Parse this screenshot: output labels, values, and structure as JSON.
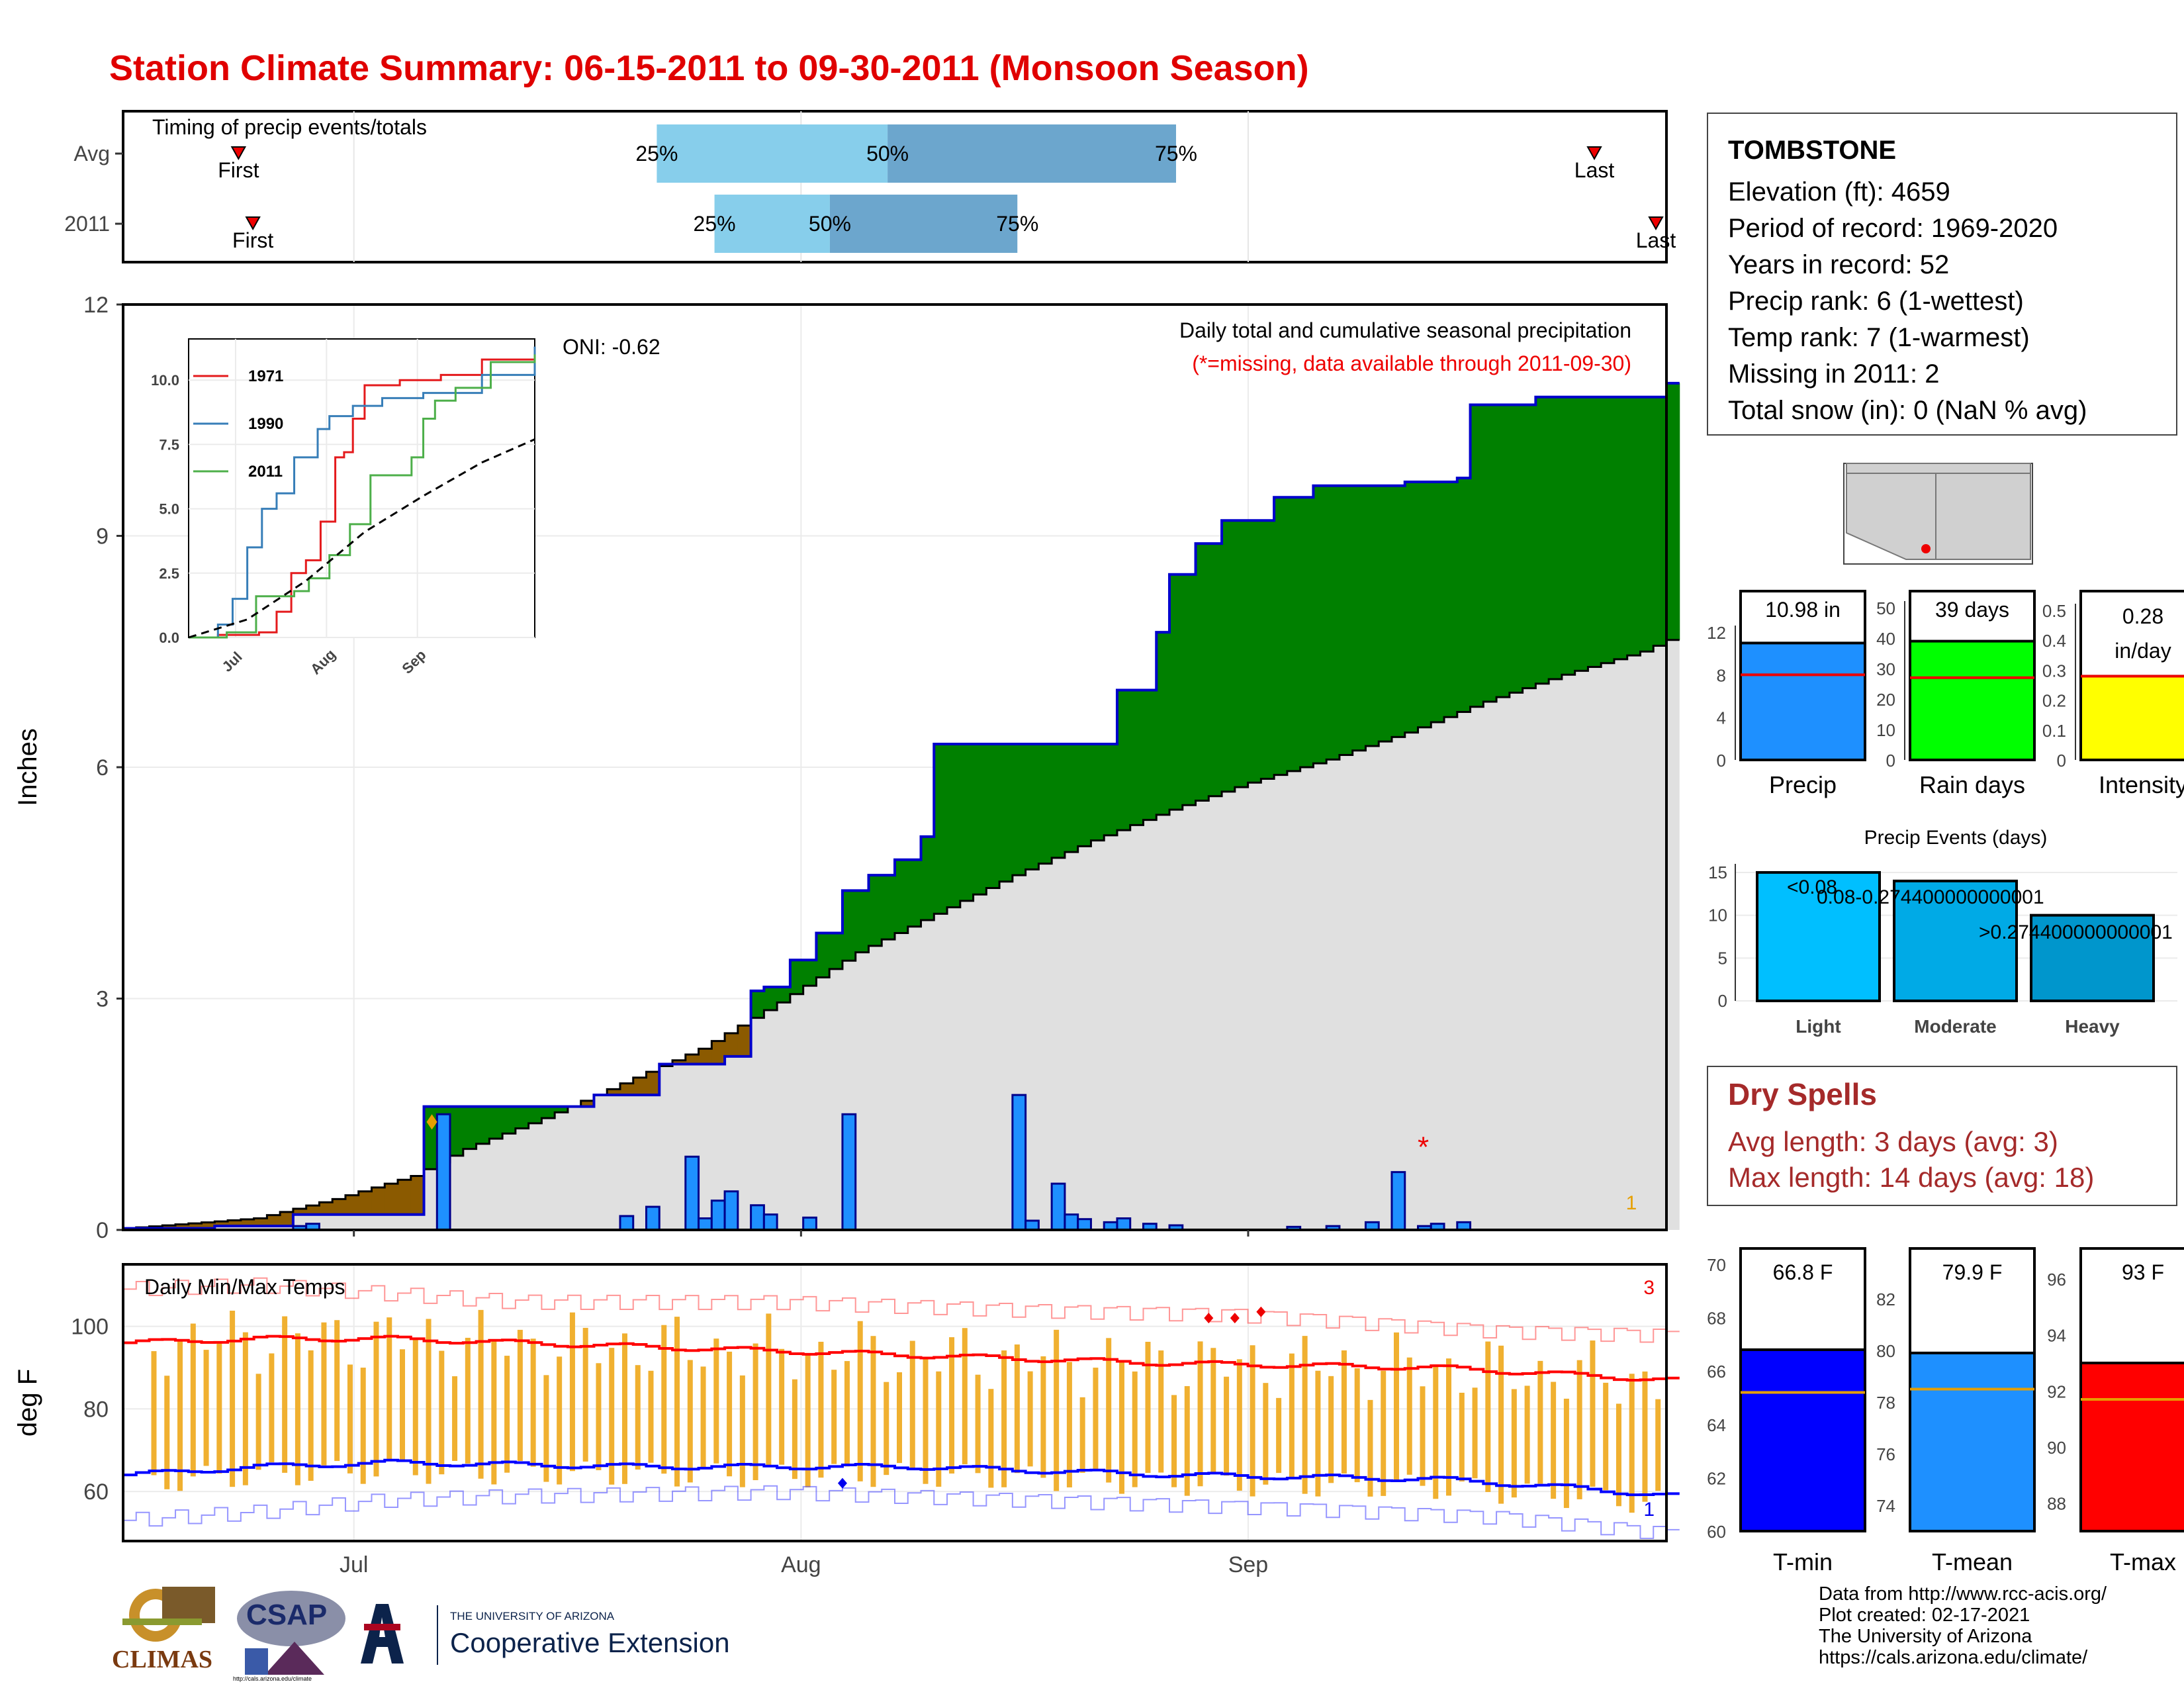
{
  "title": "Station Climate Summary: 06-15-2011 to 09-30-2011 (Monsoon Season)",
  "station": {
    "name": "TOMBSTONE",
    "lines": [
      "Elevation (ft): 4659",
      "Period of record: 1969-2020",
      "Years in record: 52",
      "Precip rank: 6 (1-wettest)",
      "Temp rank: 7 (1-warmest)",
      "Missing in 2011: 2",
      "Total snow (in): 0 (NaN % avg)"
    ]
  },
  "dry_spells": {
    "title": "Dry Spells",
    "avg": "Avg length: 3 days (avg: 3)",
    "max": "Max length: 14 days (avg: 18)"
  },
  "credits": [
    "Data from http://www.rcc-acis.org/",
    "Plot created: 02-17-2021",
    "The University of Arizona",
    "https://cals.arizona.edu/climate/"
  ],
  "logos": {
    "climas": "CLIMAS",
    "csap": "CSAP",
    "csap_url": "http://cals.arizona.edu/climate",
    "ua_line1": "THE UNIVERSITY OF ARIZONA",
    "ua_line2": "Cooperative Extension"
  },
  "colors": {
    "title": "#e00000",
    "precip_bar": "#1e90ff",
    "above_normal": "#008000",
    "below_normal": "#8b5a00",
    "normal_fill": "#e0e0e0",
    "tmax": "#ff0000",
    "tmin": "#0000ff",
    "temp_range": "#f0b030",
    "dry_spell_text": "#a52a2a"
  },
  "chart_data": [
    {
      "id": "timing",
      "type": "bar",
      "title": "Timing of precip events/totals",
      "rows": [
        {
          "label": "Avg",
          "first": "06-23",
          "p25": "07-22",
          "p50": "08-07",
          "p75": "08-27",
          "last": "09-25"
        },
        {
          "label": "2011",
          "first": "06-24",
          "p25": "07-26",
          "p50": "08-03",
          "p75": "08-16",
          "last": "09-30"
        }
      ],
      "marker_first": "First",
      "marker_last": "Last",
      "pct_labels": [
        "25%",
        "50%",
        "75%"
      ]
    },
    {
      "id": "precip",
      "type": "area",
      "title": "Daily total and cumulative seasonal precipitation",
      "subtitle": "(*=missing, data available through 2011-09-30)",
      "oni": "ONI: -0.62",
      "ylabel": "Inches",
      "ylim": [
        0,
        12
      ],
      "yticks": [
        0,
        3,
        6,
        9,
        12
      ],
      "xticks": [
        "Jul",
        "Aug",
        "Sep"
      ],
      "xstart": "06-15",
      "xend": "09-30",
      "missing_count": "1",
      "cumulative_2011": [
        [
          0,
          0.02
        ],
        [
          7,
          0.05
        ],
        [
          13,
          0.2
        ],
        [
          23,
          1.6
        ],
        [
          36,
          1.75
        ],
        [
          41,
          2.15
        ],
        [
          46,
          2.25
        ],
        [
          48,
          3.1
        ],
        [
          49,
          3.15
        ],
        [
          51,
          3.5
        ],
        [
          53,
          3.85
        ],
        [
          55,
          4.4
        ],
        [
          57,
          4.6
        ],
        [
          59,
          4.8
        ],
        [
          61,
          5.1
        ],
        [
          62,
          6.3
        ],
        [
          76,
          7.0
        ],
        [
          79,
          7.75
        ],
        [
          80,
          8.5
        ],
        [
          82,
          8.9
        ],
        [
          84,
          9.2
        ],
        [
          88,
          9.5
        ],
        [
          91,
          9.65
        ],
        [
          98,
          9.7
        ],
        [
          102,
          9.75
        ],
        [
          103,
          10.7
        ],
        [
          108,
          10.8
        ],
        [
          118,
          10.98
        ]
      ],
      "normal": [
        [
          0,
          0.02
        ],
        [
          10,
          0.15
        ],
        [
          16,
          0.4
        ],
        [
          22,
          0.7
        ],
        [
          26,
          1.05
        ],
        [
          32,
          1.45
        ],
        [
          38,
          1.9
        ],
        [
          44,
          2.35
        ],
        [
          50,
          2.95
        ],
        [
          56,
          3.6
        ],
        [
          62,
          4.1
        ],
        [
          68,
          4.6
        ],
        [
          74,
          5.05
        ],
        [
          80,
          5.45
        ],
        [
          86,
          5.8
        ],
        [
          92,
          6.1
        ],
        [
          98,
          6.45
        ],
        [
          104,
          6.85
        ],
        [
          110,
          7.2
        ],
        [
          116,
          7.5
        ],
        [
          118,
          7.65
        ]
      ],
      "daily": [
        [
          13,
          0.05
        ],
        [
          14,
          0.08
        ],
        [
          24,
          1.5
        ],
        [
          38,
          0.18
        ],
        [
          40,
          0.3
        ],
        [
          43,
          0.95
        ],
        [
          44,
          0.15
        ],
        [
          45,
          0.38
        ],
        [
          46,
          0.5
        ],
        [
          48,
          0.32
        ],
        [
          49,
          0.2
        ],
        [
          52,
          0.16
        ],
        [
          55,
          1.5
        ],
        [
          68,
          1.75
        ],
        [
          69,
          0.12
        ],
        [
          71,
          0.6
        ],
        [
          72,
          0.2
        ],
        [
          73,
          0.14
        ],
        [
          75,
          0.1
        ],
        [
          76,
          0.15
        ],
        [
          78,
          0.08
        ],
        [
          80,
          0.06
        ],
        [
          89,
          0.04
        ],
        [
          92,
          0.05
        ],
        [
          95,
          0.1
        ],
        [
          97,
          0.75
        ],
        [
          99,
          0.05
        ],
        [
          100,
          0.08
        ],
        [
          102,
          0.1
        ]
      ],
      "missing_days": [
        99
      ],
      "inset": {
        "type": "line",
        "yticks": [
          0.0,
          2.5,
          5.0,
          7.5,
          10.0
        ],
        "xticks": [
          "Jul",
          "Aug",
          "Sep"
        ],
        "series": [
          {
            "name": "1971",
            "color": "#e41a1c",
            "points": [
              [
                0,
                0
              ],
              [
                10,
                0.1
              ],
              [
                24,
                0.2
              ],
              [
                30,
                1
              ],
              [
                35,
                2.5
              ],
              [
                40,
                3
              ],
              [
                45,
                4.5
              ],
              [
                50,
                7
              ],
              [
                53,
                7.2
              ],
              [
                56,
                8.5
              ],
              [
                60,
                9.8
              ],
              [
                72,
                10
              ],
              [
                86,
                10.2
              ],
              [
                100,
                10.8
              ],
              [
                118,
                11.2
              ]
            ]
          },
          {
            "name": "1990",
            "color": "#377eb8",
            "points": [
              [
                0,
                0
              ],
              [
                10,
                0.5
              ],
              [
                15,
                1.5
              ],
              [
                20,
                3.5
              ],
              [
                25,
                5
              ],
              [
                30,
                5.6
              ],
              [
                36,
                7
              ],
              [
                44,
                8.1
              ],
              [
                48,
                8.6
              ],
              [
                56,
                9
              ],
              [
                66,
                9.3
              ],
              [
                80,
                9.5
              ],
              [
                100,
                10.2
              ],
              [
                118,
                11.3
              ]
            ]
          },
          {
            "name": "2011",
            "color": "#4daf4a",
            "points": [
              [
                0,
                0
              ],
              [
                13,
                0.2
              ],
              [
                23,
                1.6
              ],
              [
                36,
                1.8
              ],
              [
                41,
                2.3
              ],
              [
                48,
                3.2
              ],
              [
                55,
                4.4
              ],
              [
                62,
                6.3
              ],
              [
                76,
                7
              ],
              [
                80,
                8.5
              ],
              [
                84,
                9.2
              ],
              [
                91,
                9.7
              ],
              [
                103,
                10.7
              ],
              [
                118,
                11
              ]
            ]
          },
          {
            "name": "",
            "color": "#000000",
            "dashed": true,
            "points": [
              [
                0,
                0
              ],
              [
                20,
                0.7
              ],
              [
                40,
                2.2
              ],
              [
                60,
                4.1
              ],
              [
                80,
                5.5
              ],
              [
                100,
                6.8
              ],
              [
                118,
                7.7
              ]
            ]
          }
        ]
      }
    },
    {
      "id": "temps",
      "type": "line",
      "title": "Daily Min/Max Temps",
      "ylabel": "deg F",
      "yticks": [
        60,
        80,
        100
      ],
      "ylim": [
        48,
        115
      ],
      "xticks": [
        "Jul",
        "Aug",
        "Sep"
      ],
      "missing_count_max": "3",
      "missing_count_min": "1",
      "normal_max": [
        [
          0,
          96
        ],
        [
          10,
          97
        ],
        [
          20,
          97
        ],
        [
          30,
          96
        ],
        [
          40,
          95
        ],
        [
          60,
          93
        ],
        [
          80,
          91
        ],
        [
          100,
          90
        ],
        [
          118,
          87
        ]
      ],
      "normal_min": [
        [
          0,
          64
        ],
        [
          10,
          66
        ],
        [
          20,
          67
        ],
        [
          40,
          66
        ],
        [
          60,
          66
        ],
        [
          80,
          64
        ],
        [
          100,
          63
        ],
        [
          110,
          61
        ],
        [
          118,
          59
        ]
      ],
      "record_max": [
        [
          0,
          109
        ],
        [
          10,
          110
        ],
        [
          20,
          108
        ],
        [
          30,
          106
        ],
        [
          50,
          106
        ],
        [
          70,
          104
        ],
        [
          85,
          103
        ],
        [
          95,
          101
        ],
        [
          105,
          99
        ],
        [
          118,
          98
        ]
      ],
      "record_min": [
        [
          0,
          53
        ],
        [
          10,
          55
        ],
        [
          20,
          58
        ],
        [
          30,
          59
        ],
        [
          50,
          60
        ],
        [
          70,
          58
        ],
        [
          90,
          56
        ],
        [
          105,
          54
        ],
        [
          118,
          50
        ]
      ]
    },
    {
      "id": "totals",
      "type": "bar",
      "categories": [
        "Precip",
        "Rain days",
        "Intensity"
      ],
      "values": [
        10.98,
        39,
        0.28
      ],
      "labels": [
        "10.98 in",
        "39 days",
        "0.28 in/day"
      ],
      "averages": [
        8,
        27,
        0.28
      ],
      "yticks": [
        [
          0,
          4,
          8,
          12
        ],
        [
          0,
          10,
          20,
          30,
          40,
          50
        ],
        [
          0.0,
          0.1,
          0.2,
          0.3,
          0.4,
          0.5
        ]
      ],
      "colors": [
        "#1e90ff",
        "#00ff00",
        "#ffff00"
      ]
    },
    {
      "id": "events",
      "type": "bar",
      "title": "Precip Events (days)",
      "categories": [
        "Light",
        "Moderate",
        "Heavy"
      ],
      "values": [
        15,
        14,
        10
      ],
      "bar_labels": [
        "<0.08",
        "0.08-0.274400000000001",
        ">0.274400000000001"
      ],
      "yticks": [
        0,
        5,
        10,
        15
      ],
      "colors": [
        "#00bfff",
        "#00aae6",
        "#0096cc"
      ]
    },
    {
      "id": "temp_means",
      "type": "bar",
      "categories": [
        "T-min",
        "T-mean",
        "T-max"
      ],
      "values": [
        66.8,
        79.9,
        93
      ],
      "labels": [
        "66.8 F",
        "79.9 F",
        "93 F"
      ],
      "averages": [
        65.2,
        78.5,
        91.7
      ],
      "yticks": [
        [
          60,
          62,
          64,
          66,
          68,
          70
        ],
        [
          74,
          76,
          78,
          80,
          82
        ],
        [
          88,
          90,
          92,
          94,
          96
        ]
      ],
      "colors": [
        "#0000ff",
        "#1e90ff",
        "#ff0000"
      ]
    }
  ]
}
